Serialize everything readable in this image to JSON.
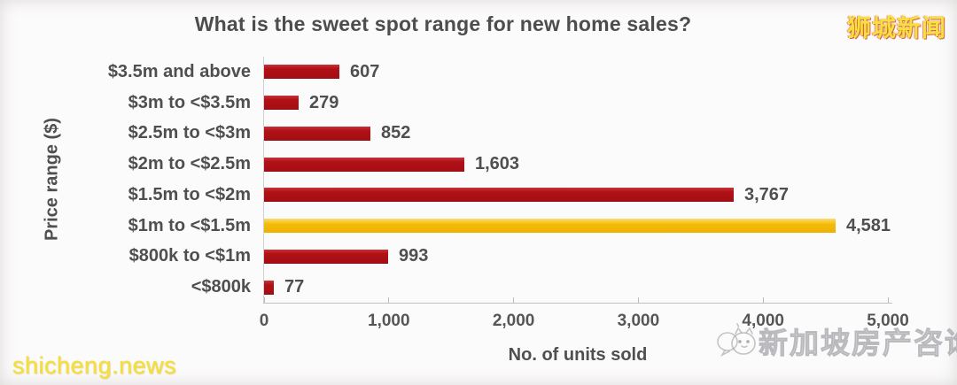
{
  "title": "What is the sweet spot range for new home sales?",
  "watermarks": {
    "top_right": "狮城新闻",
    "bottom_left": "shicheng.news",
    "bottom_right": "新加坡房产咨询"
  },
  "colors": {
    "bar_red": "#ac1016",
    "bar_highlight_gold": "#f2b900",
    "text_gray": "#4f4f4f",
    "axis_gray": "#c2c0bf",
    "watermark_yellow": "#f6e03e",
    "watermark_gray": "#949499"
  },
  "chart_data": {
    "type": "bar",
    "orientation": "horizontal",
    "title": "What is the sweet spot range for new home sales?",
    "xlabel": "No. of units sold",
    "ylabel": "Price range ($)",
    "xlim": [
      0,
      5000
    ],
    "xticks": [
      0,
      1000,
      2000,
      3000,
      4000,
      5000
    ],
    "xtick_labels": [
      "0",
      "1,000",
      "2,000",
      "3,000",
      "4,000",
      "5,000"
    ],
    "categories": [
      "$3.5m and above",
      "$3m to <$3.5m",
      "$2.5m to <$3m",
      "$2m to <$2.5m",
      "$1.5m to <$2m",
      "$1m to <$1.5m",
      "$800k to <$1m",
      "<$800k"
    ],
    "values": [
      607,
      279,
      852,
      1603,
      3767,
      4581,
      993,
      77
    ],
    "value_labels": [
      "607",
      "279",
      "852",
      "1,603",
      "3,767",
      "4,581",
      "993",
      "77"
    ],
    "highlight_index": 5,
    "grid": false,
    "legend": false
  }
}
